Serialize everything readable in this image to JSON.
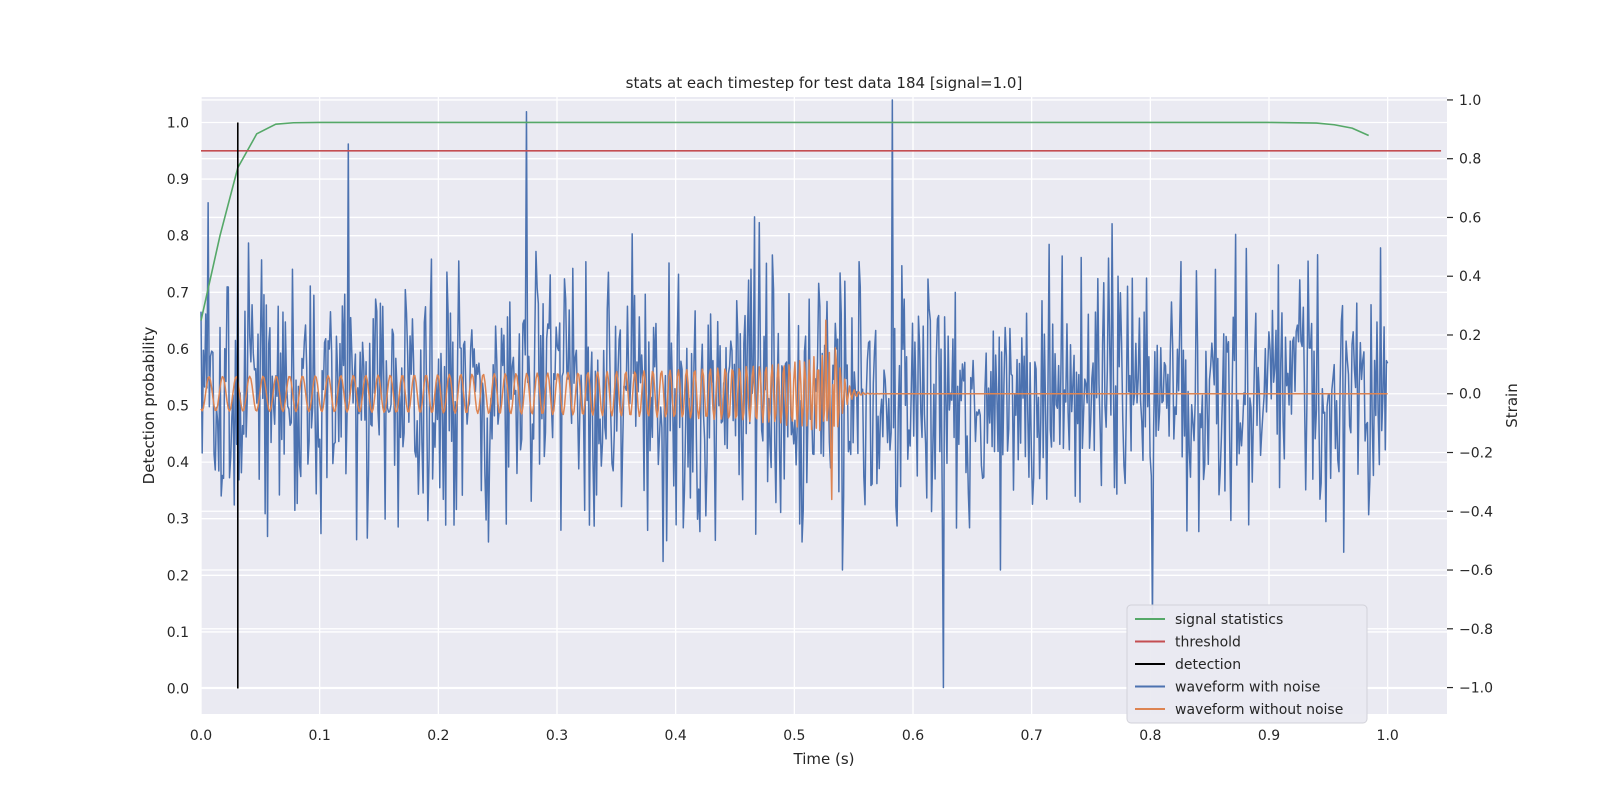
{
  "chart_data": {
    "type": "line",
    "title": "stats at each timestep for test data 184 [signal=1.0]",
    "xlabel": "Time (s)",
    "ylabel": "Detection probability",
    "y2label": "Strain",
    "xlim": [
      0.0,
      1.05
    ],
    "ylim": [
      -0.045,
      1.045
    ],
    "y2lim": [
      -1.09,
      1.01
    ],
    "xticks": [
      0.0,
      0.1,
      0.2,
      0.3,
      0.4,
      0.5,
      0.6,
      0.7,
      0.8,
      0.9,
      1.0
    ],
    "xtick_labels": [
      "0.0",
      "0.1",
      "0.2",
      "0.3",
      "0.4",
      "0.5",
      "0.6",
      "0.7",
      "0.8",
      "0.9",
      "1.0"
    ],
    "yticks": [
      0.0,
      0.1,
      0.2,
      0.3,
      0.4,
      0.5,
      0.6,
      0.7,
      0.8,
      0.9,
      1.0
    ],
    "ytick_labels": [
      "0.0",
      "0.1",
      "0.2",
      "0.3",
      "0.4",
      "0.5",
      "0.6",
      "0.7",
      "0.8",
      "0.9",
      "1.0"
    ],
    "y2ticks": [
      -1.0,
      -0.8,
      -0.6,
      -0.4,
      -0.2,
      0.0,
      0.2,
      0.4,
      0.6,
      0.8,
      1.0
    ],
    "y2tick_labels": [
      "−1.0",
      "−0.8",
      "−0.6",
      "−0.4",
      "−0.2",
      "0.0",
      "0.2",
      "0.4",
      "0.6",
      "0.8",
      "1.0"
    ],
    "grid": true,
    "legend_position": "bottom-right",
    "colors": {
      "plot_background": "#eaeaf2",
      "grid": "#ffffff",
      "signal_statistics": "#55a868",
      "threshold": "#c44e52",
      "detection": "#000000",
      "waveform_with_noise": "#4c72b0",
      "waveform_without_noise": "#dd8452"
    },
    "series": [
      {
        "name": "signal statistics",
        "axis": "left",
        "x": [
          0.0,
          0.016,
          0.031,
          0.047,
          0.063,
          0.078,
          0.1,
          0.2,
          0.3,
          0.4,
          0.5,
          0.6,
          0.7,
          0.8,
          0.9,
          0.94,
          0.955,
          0.97,
          0.984
        ],
        "y": [
          0.65,
          0.8,
          0.92,
          0.98,
          0.997,
          0.9995,
          1.0,
          1.0,
          1.0,
          1.0,
          1.0,
          1.0,
          1.0,
          1.0,
          1.0,
          0.999,
          0.996,
          0.99,
          0.977
        ]
      },
      {
        "name": "threshold",
        "axis": "left",
        "x": [
          0.0,
          1.045
        ],
        "y": [
          0.95,
          0.95
        ]
      },
      {
        "name": "detection",
        "axis": "left",
        "x": [
          0.031,
          0.031
        ],
        "y": [
          0.0,
          1.0
        ]
      },
      {
        "name": "waveform with noise",
        "axis": "right",
        "generated": "noisy strain, 1000 samples over 0.0 to 1.0 s, roughly -0.55 to 0.85",
        "peaks": [
          {
            "x": 0.006,
            "y": 0.65
          },
          {
            "x": 0.124,
            "y": 0.85
          },
          {
            "x": 0.274,
            "y": 0.96
          },
          {
            "x": 0.583,
            "y": 1.0
          },
          {
            "x": 0.626,
            "y": -1.0
          },
          {
            "x": 0.802,
            "y": -0.75
          }
        ]
      },
      {
        "name": "waveform without noise",
        "axis": "right",
        "generated": "chirp from 0.0 s to 0.535 s with rising amplitude, then ringdown to 0.0",
        "peaks": [
          {
            "x": 0.527,
            "y": 0.25
          },
          {
            "x": 0.532,
            "y": -0.36
          }
        ]
      }
    ]
  }
}
